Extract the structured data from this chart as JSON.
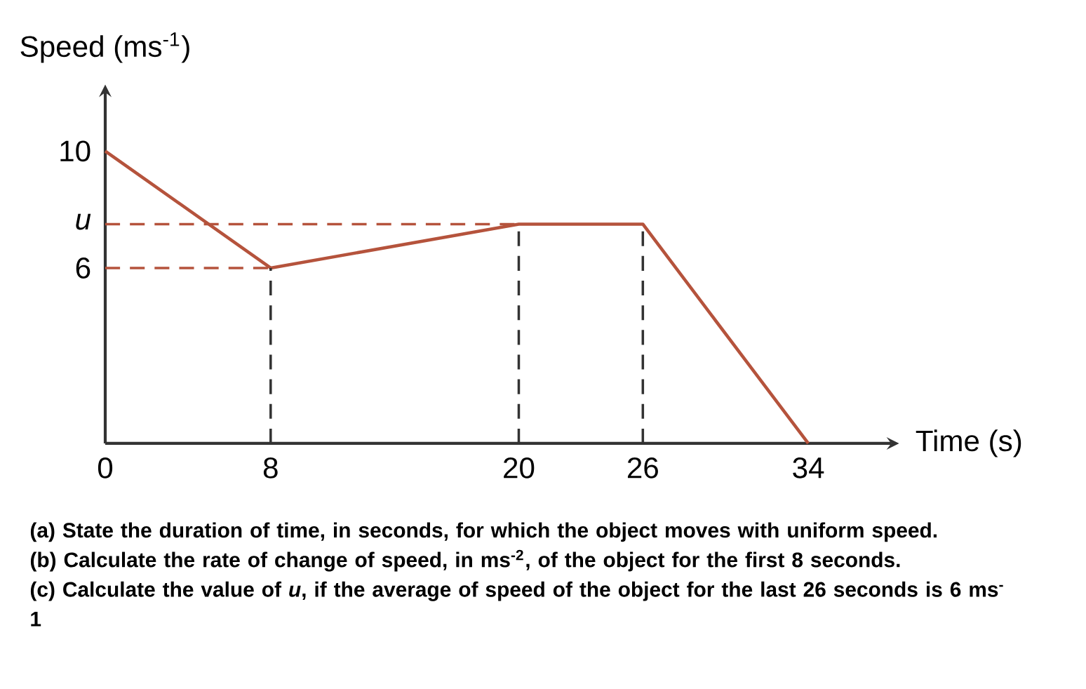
{
  "chart_data": {
    "type": "line",
    "ylabel": "Speed (ms$^{-1}$)",
    "xlabel": "Time (s)",
    "x": [
      0,
      8,
      20,
      26,
      34
    ],
    "series": [
      {
        "color": "#b5533c",
        "values": [
          10,
          6,
          7.5,
          7.5,
          0
        ]
      }
    ],
    "xlim": [
      0,
      38
    ],
    "ylim": [
      0,
      12
    ],
    "xticks": [
      0,
      8,
      20,
      26,
      34
    ],
    "yticks": [
      6,
      {
        "value": 7.5,
        "label": "u"
      },
      10
    ],
    "ref_lines": [
      {
        "axis": "y",
        "value": 6,
        "color": "#b5533c",
        "line_style": "dashed"
      },
      {
        "axis": "y",
        "value": 7.5,
        "color": "#b5533c",
        "line_style": "dashed"
      },
      {
        "axis": "x",
        "value": 8,
        "color": "#333333",
        "line_style": "dashed"
      },
      {
        "axis": "x",
        "value": 20,
        "color": "#333333",
        "line_style": "dashed"
      },
      {
        "axis": "x",
        "value": 26,
        "color": "#333333",
        "line_style": "dashed"
      }
    ],
    "annotations": [
      "(a) State the duration of time, in seconds, for which the object moves with uniform speed.",
      "(b) Calculate the rate of change of speed, in ms$^{-2}$, of the object for the first 8 seconds.",
      "(c) Calculate the value of *u*, if the average of speed of the object for the last 26 seconds is 6 ms$^{-}$",
      "1"
    ]
  }
}
